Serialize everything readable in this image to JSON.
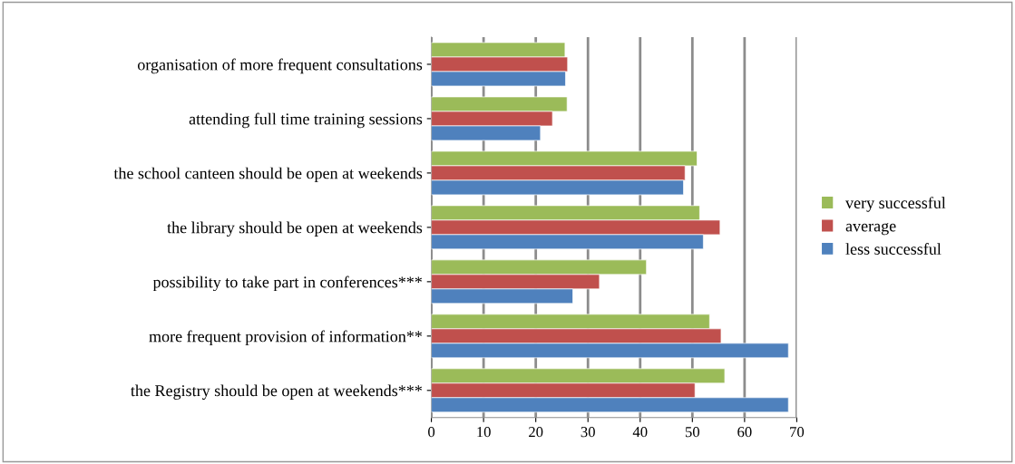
{
  "chart_data": {
    "type": "bar",
    "orientation": "horizontal",
    "categories": [
      "organisation of more frequent consultations",
      "attending full time training sessions",
      "the school canteen should be open at weekends",
      "the library should be open at weekends",
      "possibility to take part in conferences***",
      "more frequent provision of information**",
      "the Registry should be open at weekends***"
    ],
    "series": [
      {
        "name": "very successful",
        "color": "#9bbb59",
        "values": [
          25.6,
          26,
          50.9,
          51.4,
          41.2,
          53.3,
          56.2
        ]
      },
      {
        "name": "average",
        "color": "#c0504d",
        "values": [
          26.1,
          23.2,
          48.6,
          55.3,
          32.2,
          55.5,
          50.5
        ]
      },
      {
        "name": "less successful",
        "color": "#4f81bd",
        "values": [
          25.7,
          20.9,
          48.3,
          52.1,
          27.1,
          68.4,
          68.4
        ]
      }
    ],
    "xlim": [
      0,
      70
    ],
    "xticks": [
      0,
      10,
      20,
      30,
      40,
      50,
      60,
      70
    ],
    "grid": "x",
    "legend": "right"
  }
}
